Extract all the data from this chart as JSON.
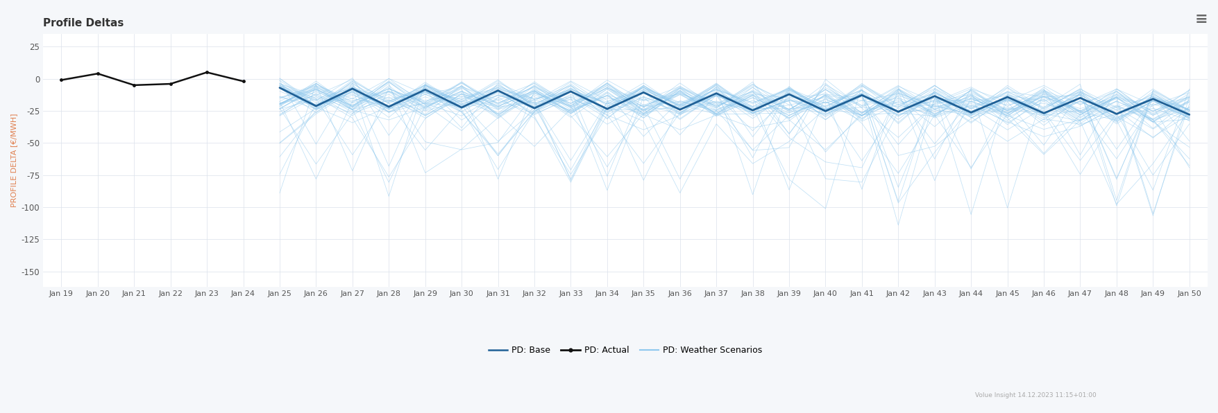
{
  "title": "Profile Deltas",
  "ylabel": "PROFILE DELTA [€/MWH]",
  "title_color": "#333333",
  "ylabel_color": "#e08050",
  "background_color": "#f5f7fa",
  "plot_bg_color": "#ffffff",
  "grid_color": "#dde3ec",
  "yticks": [
    25,
    0,
    -25,
    -50,
    -75,
    -100,
    -125,
    -150
  ],
  "ylim": [
    -162,
    35
  ],
  "x_labels": [
    "Jan 19",
    "Jan 20",
    "Jan 21",
    "Jan 22",
    "Jan 23",
    "Jan 24",
    "Jan 25",
    "Jan 26",
    "Jan 27",
    "Jan 28",
    "Jan 29",
    "Jan 30",
    "Jan 31",
    "Jan 32",
    "Jan 33",
    "Jan 34",
    "Jan 35",
    "Jan 36",
    "Jan 37",
    "Jan 38",
    "Jan 39",
    "Jan 40",
    "Jan 41",
    "Jan 42",
    "Jan 43",
    "Jan 44",
    "Jan 45",
    "Jan 46",
    "Jan 47",
    "Jan 48",
    "Jan 49",
    "Jan 50"
  ],
  "actual_color": "#111111",
  "base_color": "#1f6096",
  "weather_color": "#8ec8ee",
  "actual_lw": 1.8,
  "base_lw": 2.0,
  "weather_lw": 0.55,
  "actual_marker": "o",
  "actual_marker_size": 2.5,
  "watermark": "Volue Insight 14.12.2023 11:15+01:00",
  "legend_items": [
    "PD: Base",
    "PD: Actual",
    "PD: Weather Scenarios"
  ],
  "num_weeks": 32,
  "hist_weeks": 6,
  "n_scenarios": 50
}
